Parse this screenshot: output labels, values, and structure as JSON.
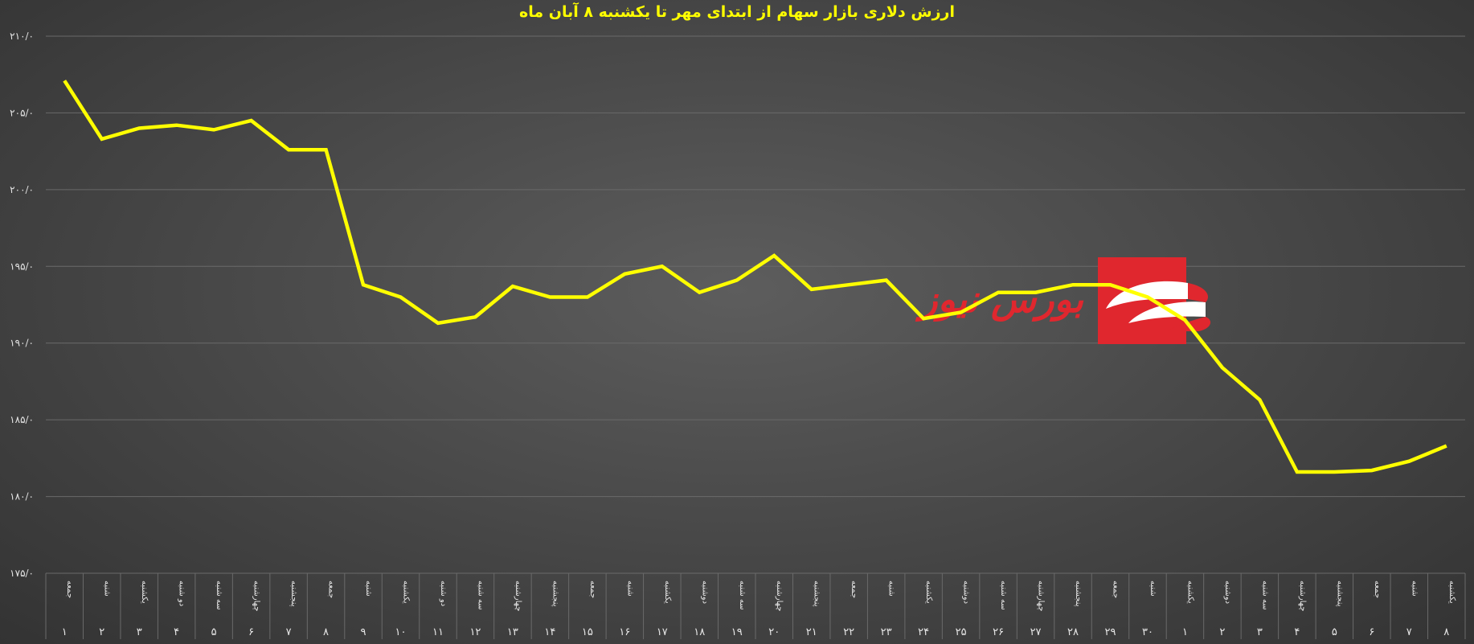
{
  "chart_data": {
    "type": "line",
    "title": "ارزش دلاری بازار سهام از ابتدای مهر تا یکشنبه ۸ آبان ماه",
    "ylim": [
      175,
      210
    ],
    "yticks": [
      "۱۷۵/۰",
      "۱۸۰/۰",
      "۱۸۵/۰",
      "۱۹۰/۰",
      "۱۹۵/۰",
      "۲۰۰/۰",
      "۲۰۵/۰",
      "۲۱۰/۰"
    ],
    "ytick_values": [
      175,
      180,
      185,
      190,
      195,
      200,
      205,
      210
    ],
    "categories": [
      {
        "day": "جمعه",
        "date": "۱"
      },
      {
        "day": "شنبه",
        "date": "۲"
      },
      {
        "day": "یکشنبه",
        "date": "۳"
      },
      {
        "day": "دو شنبه",
        "date": "۴"
      },
      {
        "day": "سه شنبه",
        "date": "۵"
      },
      {
        "day": "چهارشنبه",
        "date": "۶"
      },
      {
        "day": "پنجشنبه",
        "date": "۷"
      },
      {
        "day": "جمعه",
        "date": "۸"
      },
      {
        "day": "شنبه",
        "date": "۹"
      },
      {
        "day": "یکشنبه",
        "date": "۱۰"
      },
      {
        "day": "دو شنبه",
        "date": "۱۱"
      },
      {
        "day": "سه شنبه",
        "date": "۱۲"
      },
      {
        "day": "چهارشنبه",
        "date": "۱۳"
      },
      {
        "day": "پنجشنبه",
        "date": "۱۴"
      },
      {
        "day": "جمعه",
        "date": "۱۵"
      },
      {
        "day": "شنبه",
        "date": "۱۶"
      },
      {
        "day": "یکشنبه",
        "date": "۱۷"
      },
      {
        "day": "دوشنبه",
        "date": "۱۸"
      },
      {
        "day": "سه شنبه",
        "date": "۱۹"
      },
      {
        "day": "چهارشنبه",
        "date": "۲۰"
      },
      {
        "day": "پنجشنبه",
        "date": "۲۱"
      },
      {
        "day": "جمعه",
        "date": "۲۲"
      },
      {
        "day": "شنبه",
        "date": "۲۳"
      },
      {
        "day": "یکشنبه",
        "date": "۲۴"
      },
      {
        "day": "دوشنبه",
        "date": "۲۵"
      },
      {
        "day": "سه شنبه",
        "date": "۲۶"
      },
      {
        "day": "چهارشنبه",
        "date": "۲۷"
      },
      {
        "day": "پنجشنبه",
        "date": "۲۸"
      },
      {
        "day": "جمعه",
        "date": "۲۹"
      },
      {
        "day": "شنبه",
        "date": "۳۰"
      },
      {
        "day": "یکشنبه",
        "date": "۱"
      },
      {
        "day": "دوشنبه",
        "date": "۲"
      },
      {
        "day": "سه شنبه",
        "date": "۳"
      },
      {
        "day": "چهارشنبه",
        "date": "۴"
      },
      {
        "day": "پنجشنبه",
        "date": "۵"
      },
      {
        "day": "جمعه",
        "date": "۶"
      },
      {
        "day": "شنبه",
        "date": "۷"
      },
      {
        "day": "یکشنبه",
        "date": "۸"
      }
    ],
    "series": [
      {
        "values": [
          207.1,
          203.3,
          204.0,
          204.2,
          203.9,
          204.5,
          202.6,
          202.6,
          193.8,
          193.0,
          191.3,
          191.7,
          193.7,
          193.0,
          193.0,
          194.5,
          195.0,
          193.3,
          194.1,
          195.7,
          193.5,
          193.8,
          194.1,
          191.6,
          192.0,
          193.3,
          193.3,
          193.8,
          193.8,
          193.0,
          191.5,
          188.4,
          186.3,
          181.6,
          181.6,
          181.7,
          182.3,
          183.3
        ],
        "color": "#ffff00"
      }
    ],
    "grid": true,
    "legend": "none",
    "watermark": "بورس نیوز",
    "colors": {
      "line": "#ffff00",
      "title": "#ffff00",
      "grid": "#6a6a6a",
      "axis_text": "#e6e6e6",
      "logo": "#e0272e"
    }
  }
}
